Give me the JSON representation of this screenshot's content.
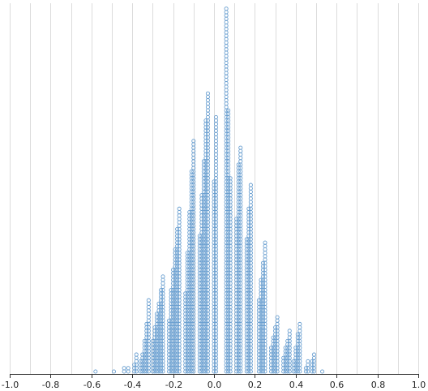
{
  "chart_data": {
    "type": "scatter",
    "subtype": "beeswarm / dot stack plot",
    "title": "",
    "xlabel": "",
    "ylabel": "",
    "xlim": [
      -1.0,
      1.0
    ],
    "grid": "vertical",
    "marker": "open circle",
    "color": "#6a9fd0",
    "x_ticks": [
      "-1.0",
      "-0.8",
      "-0.6",
      "-0.4",
      "-0.2",
      "0.0",
      "0.2",
      "0.4",
      "0.6",
      "0.8",
      "1.0"
    ],
    "stacks": [
      {
        "x": -0.58,
        "count": 1
      },
      {
        "x": -0.49,
        "count": 1
      },
      {
        "x": -0.44,
        "count": 2
      },
      {
        "x": -0.42,
        "count": 2
      },
      {
        "x": -0.39,
        "count": 3
      },
      {
        "x": -0.38,
        "count": 6
      },
      {
        "x": -0.36,
        "count": 4
      },
      {
        "x": -0.35,
        "count": 6
      },
      {
        "x": -0.34,
        "count": 10
      },
      {
        "x": -0.33,
        "count": 15
      },
      {
        "x": -0.32,
        "count": 22
      },
      {
        "x": -0.3,
        "count": 10
      },
      {
        "x": -0.29,
        "count": 14
      },
      {
        "x": -0.28,
        "count": 18
      },
      {
        "x": -0.27,
        "count": 21
      },
      {
        "x": -0.26,
        "count": 25
      },
      {
        "x": -0.25,
        "count": 29
      },
      {
        "x": -0.22,
        "count": 16
      },
      {
        "x": -0.21,
        "count": 25
      },
      {
        "x": -0.2,
        "count": 31
      },
      {
        "x": -0.19,
        "count": 37
      },
      {
        "x": -0.18,
        "count": 43
      },
      {
        "x": -0.17,
        "count": 49
      },
      {
        "x": -0.14,
        "count": 24
      },
      {
        "x": -0.13,
        "count": 36
      },
      {
        "x": -0.12,
        "count": 48
      },
      {
        "x": -0.11,
        "count": 60
      },
      {
        "x": -0.1,
        "count": 69
      },
      {
        "x": -0.07,
        "count": 41
      },
      {
        "x": -0.06,
        "count": 53
      },
      {
        "x": -0.05,
        "count": 63
      },
      {
        "x": -0.04,
        "count": 75
      },
      {
        "x": -0.03,
        "count": 83
      },
      {
        "x": 0.0,
        "count": 57
      },
      {
        "x": 0.01,
        "count": 76
      },
      {
        "x": 0.06,
        "count": 108
      },
      {
        "x": 0.07,
        "count": 78
      },
      {
        "x": 0.08,
        "count": 58
      },
      {
        "x": 0.11,
        "count": 46
      },
      {
        "x": 0.12,
        "count": 62
      },
      {
        "x": 0.13,
        "count": 67
      },
      {
        "x": 0.16,
        "count": 40
      },
      {
        "x": 0.17,
        "count": 49
      },
      {
        "x": 0.18,
        "count": 56
      },
      {
        "x": 0.22,
        "count": 22
      },
      {
        "x": 0.23,
        "count": 28
      },
      {
        "x": 0.24,
        "count": 33
      },
      {
        "x": 0.25,
        "count": 39
      },
      {
        "x": 0.28,
        "count": 8
      },
      {
        "x": 0.29,
        "count": 11
      },
      {
        "x": 0.3,
        "count": 14
      },
      {
        "x": 0.31,
        "count": 17
      },
      {
        "x": 0.34,
        "count": 5
      },
      {
        "x": 0.35,
        "count": 8
      },
      {
        "x": 0.36,
        "count": 10
      },
      {
        "x": 0.37,
        "count": 13
      },
      {
        "x": 0.39,
        "count": 4
      },
      {
        "x": 0.4,
        "count": 8
      },
      {
        "x": 0.41,
        "count": 12
      },
      {
        "x": 0.42,
        "count": 15
      },
      {
        "x": 0.45,
        "count": 2
      },
      {
        "x": 0.46,
        "count": 4
      },
      {
        "x": 0.48,
        "count": 4
      },
      {
        "x": 0.49,
        "count": 6
      },
      {
        "x": 0.53,
        "count": 1
      }
    ]
  }
}
